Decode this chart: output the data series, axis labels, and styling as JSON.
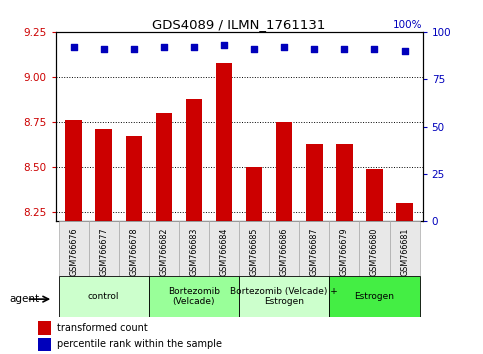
{
  "title": "GDS4089 / ILMN_1761131",
  "samples": [
    "GSM766676",
    "GSM766677",
    "GSM766678",
    "GSM766682",
    "GSM766683",
    "GSM766684",
    "GSM766685",
    "GSM766686",
    "GSM766687",
    "GSM766679",
    "GSM766680",
    "GSM766681"
  ],
  "bar_values": [
    8.76,
    8.71,
    8.67,
    8.8,
    8.88,
    9.08,
    8.5,
    8.75,
    8.63,
    8.63,
    8.49,
    8.3
  ],
  "percentile_values": [
    92,
    91,
    91,
    92,
    92,
    93,
    91,
    92,
    91,
    91,
    91,
    90
  ],
  "bar_color": "#cc0000",
  "dot_color": "#0000bb",
  "ylim_left": [
    8.2,
    9.25
  ],
  "ylim_right": [
    0,
    100
  ],
  "yticks_left": [
    8.25,
    8.5,
    8.75,
    9.0,
    9.25
  ],
  "yticks_right": [
    0,
    25,
    50,
    75,
    100
  ],
  "groups": [
    {
      "label": "control",
      "start": 0,
      "end": 3,
      "color": "#ccffcc"
    },
    {
      "label": "Bortezomib\n(Velcade)",
      "start": 3,
      "end": 6,
      "color": "#99ff99"
    },
    {
      "label": "Bortezomib (Velcade) +\nEstrogen",
      "start": 6,
      "end": 9,
      "color": "#ccffcc"
    },
    {
      "label": "Estrogen",
      "start": 9,
      "end": 12,
      "color": "#44ee44"
    }
  ],
  "legend_bar_label": "transformed count",
  "legend_dot_label": "percentile rank within the sample",
  "agent_label": "agent",
  "bar_width": 0.55,
  "bg_color": "#e8e8e8"
}
